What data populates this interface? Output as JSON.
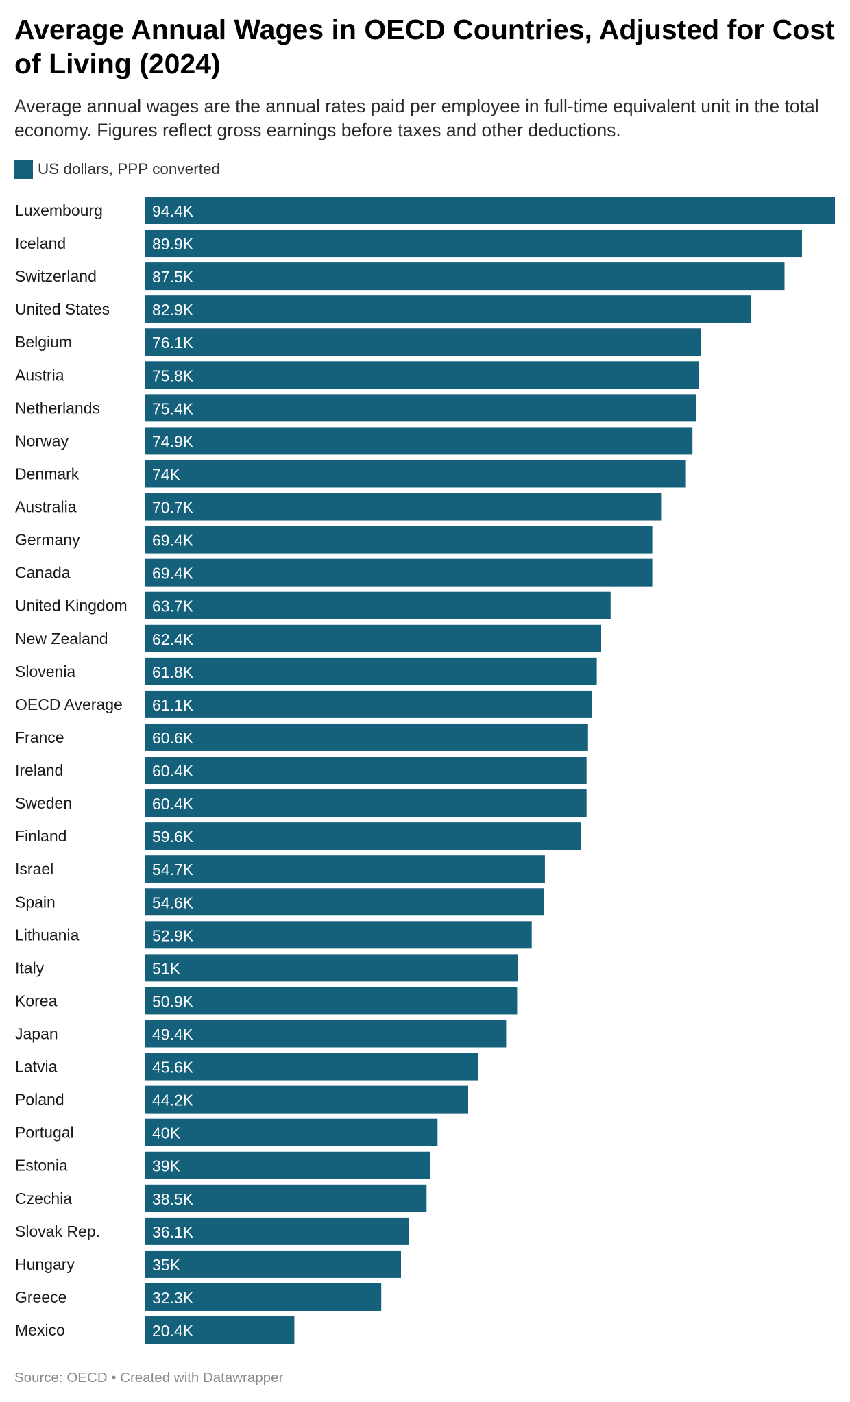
{
  "title": "Average Annual Wages in OECD Countries, Adjusted for Cost of Living (2024)",
  "subtitle": "Average annual wages are the annual rates paid per employee in full-time equivalent unit in the total economy. Figures reflect gross earnings before taxes and other deductions.",
  "legend": {
    "label": "US dollars, PPP converted",
    "color": "#15607a"
  },
  "footer": {
    "source": "Source: OECD",
    "separator": "•",
    "credit": "Created with Datawrapper"
  },
  "chart_data": {
    "type": "bar",
    "orientation": "horizontal",
    "categories": [
      "Luxembourg",
      "Iceland",
      "Switzerland",
      "United States",
      "Belgium",
      "Austria",
      "Netherlands",
      "Norway",
      "Denmark",
      "Australia",
      "Germany",
      "Canada",
      "United Kingdom",
      "New Zealand",
      "Slovenia",
      "OECD Average",
      "France",
      "Ireland",
      "Sweden",
      "Finland",
      "Israel",
      "Spain",
      "Lithuania",
      "Italy",
      "Korea",
      "Japan",
      "Latvia",
      "Poland",
      "Portugal",
      "Estonia",
      "Czechia",
      "Slovak Rep.",
      "Hungary",
      "Greece",
      "Mexico"
    ],
    "series": [
      {
        "name": "US dollars, PPP converted",
        "values": [
          94.4,
          89.9,
          87.5,
          82.9,
          76.1,
          75.8,
          75.4,
          74.9,
          74,
          70.7,
          69.4,
          69.4,
          63.7,
          62.4,
          61.8,
          61.1,
          60.6,
          60.4,
          60.4,
          59.6,
          54.7,
          54.6,
          52.9,
          51,
          50.9,
          49.4,
          45.6,
          44.2,
          40,
          39,
          38.5,
          36.1,
          35,
          32.3,
          20.4
        ]
      }
    ],
    "value_labels": [
      "94.4K",
      "89.9K",
      "87.5K",
      "82.9K",
      "76.1K",
      "75.8K",
      "75.4K",
      "74.9K",
      "74K",
      "70.7K",
      "69.4K",
      "69.4K",
      "63.7K",
      "62.4K",
      "61.8K",
      "61.1K",
      "60.6K",
      "60.4K",
      "60.4K",
      "59.6K",
      "54.7K",
      "54.6K",
      "52.9K",
      "51K",
      "50.9K",
      "49.4K",
      "45.6K",
      "44.2K",
      "40K",
      "39K",
      "38.5K",
      "36.1K",
      "35K",
      "32.3K",
      "20.4K"
    ],
    "xlim": [
      0,
      94.4
    ],
    "bar_color": "#15607a",
    "label_color": "#ffffff",
    "grid": false,
    "legend_position": "top-left"
  }
}
